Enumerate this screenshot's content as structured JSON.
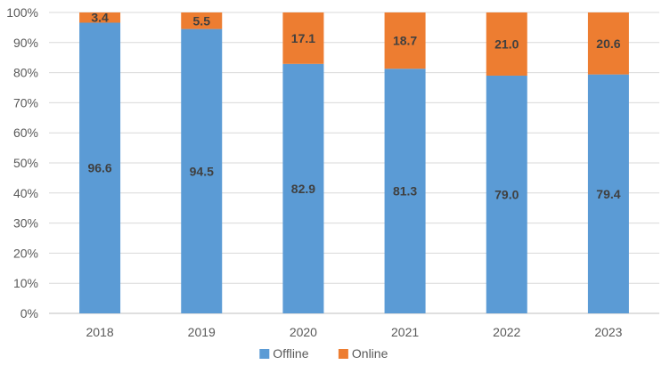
{
  "chart_data": {
    "type": "bar",
    "stacked": true,
    "percent_stacked": true,
    "categories": [
      "2018",
      "2019",
      "2020",
      "2021",
      "2022",
      "2023"
    ],
    "series": [
      {
        "name": "Offline",
        "color": "#5b9bd5",
        "values": [
          96.6,
          94.5,
          82.9,
          81.3,
          79.0,
          79.4
        ]
      },
      {
        "name": "Online",
        "color": "#ed7d31",
        "values": [
          3.4,
          5.5,
          17.1,
          18.7,
          21.0,
          20.6
        ]
      }
    ],
    "ylim": [
      0,
      100
    ],
    "yticks": [
      "0%",
      "10%",
      "20%",
      "30%",
      "40%",
      "50%",
      "60%",
      "70%",
      "80%",
      "90%",
      "100%"
    ],
    "grid": true,
    "legend_position": "bottom",
    "title": "",
    "xlabel": "",
    "ylabel": ""
  }
}
